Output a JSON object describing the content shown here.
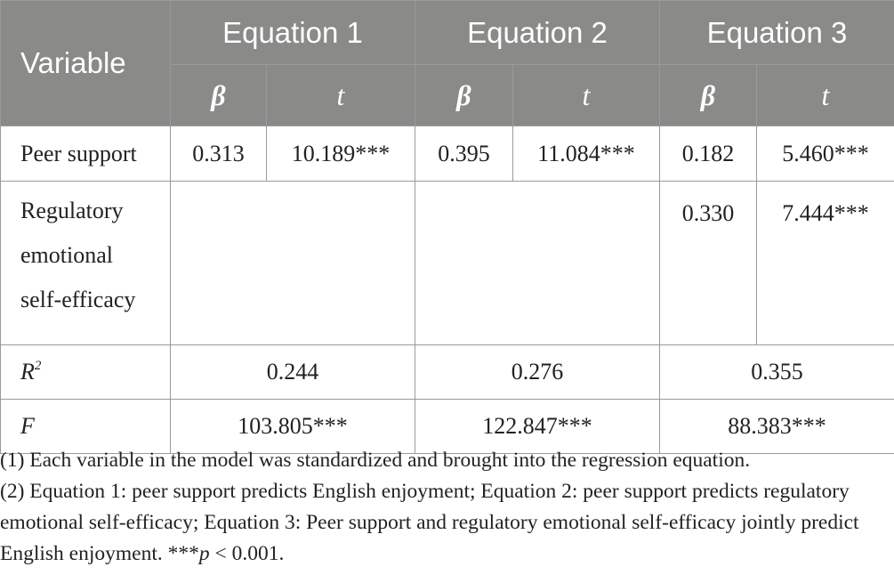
{
  "header": {
    "variable": "Variable",
    "equations": [
      "Equation 1",
      "Equation 2",
      "Equation 3"
    ],
    "beta": "β",
    "t": "t"
  },
  "rows": {
    "peer_support": {
      "label": "Peer support",
      "values": [
        "0.313",
        "10.189***",
        "0.395",
        "11.084***",
        "0.182",
        "5.460***"
      ]
    },
    "resе": {
      "label": "Regulatory emotional self-efficacy"
    },
    "rese": {
      "label_lines": [
        "Regulatory",
        "emotional",
        "self-efficacy"
      ],
      "values": [
        "0.330",
        "7.444***"
      ]
    },
    "r2": {
      "label_main": "R",
      "label_sup": "2",
      "values": [
        "0.244",
        "0.276",
        "0.355"
      ]
    },
    "f": {
      "label": "F",
      "values": [
        "103.805***",
        "122.847***",
        "88.383***"
      ]
    }
  },
  "notes": {
    "note1": "(1) Each variable in the model was standardized and brought into the regression equation.",
    "note2": "(2) Equation 1: peer support predicts English enjoyment; Equation 2: peer support predicts regulatory emotional self-efficacy; Equation 3: Peer support and regulatory emotional self-efficacy jointly predict English enjoyment. ***",
    "note2_p": "p",
    "note2_tail": " < 0.001."
  }
}
